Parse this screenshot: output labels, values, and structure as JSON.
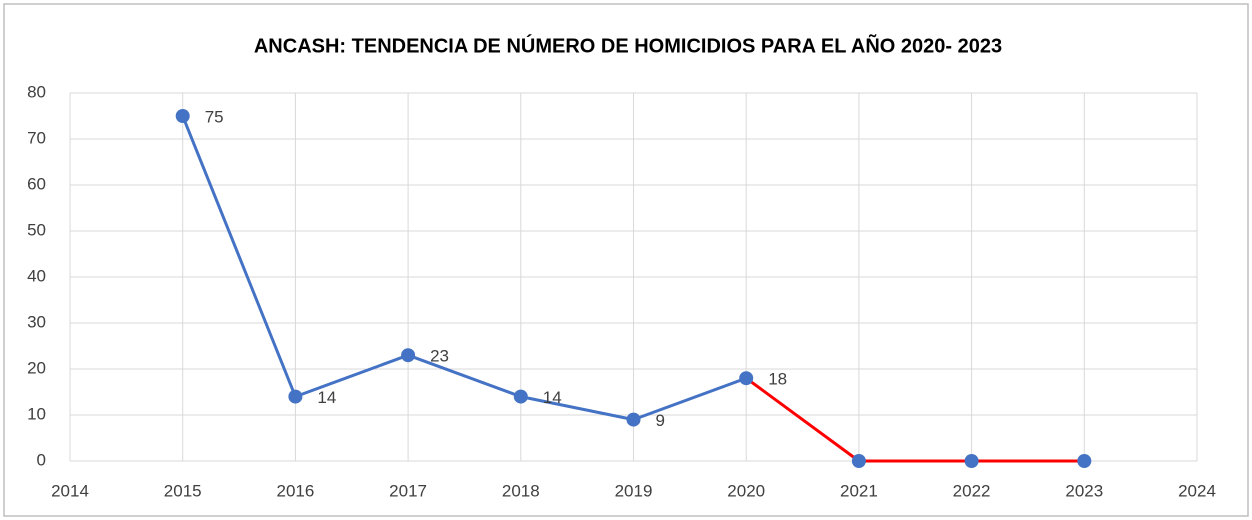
{
  "chart_data": {
    "type": "line",
    "title": "ANCASH: TENDENCIA DE NÚMERO DE HOMICIDIOS PARA EL AÑO 2020- 2023",
    "x": [
      2015,
      2016,
      2017,
      2018,
      2019,
      2020,
      2021,
      2022,
      2023
    ],
    "series": [
      {
        "color": "#4472c4",
        "values": [
          75,
          14,
          23,
          14,
          9,
          18,
          0,
          0,
          0
        ],
        "segment_colors": [
          "#4472c4",
          "#4472c4",
          "#4472c4",
          "#4472c4",
          "#4472c4",
          "#ff0000",
          "#ff0000",
          "#ff0000"
        ],
        "show_labels": [
          true,
          true,
          true,
          true,
          true,
          true,
          false,
          false,
          false
        ]
      }
    ],
    "xlim": [
      2014,
      2024
    ],
    "xticks": [
      2014,
      2015,
      2016,
      2017,
      2018,
      2019,
      2020,
      2021,
      2022,
      2023,
      2024
    ],
    "ylim": [
      0,
      80
    ],
    "yticks": [
      0,
      10,
      20,
      30,
      40,
      50,
      60,
      70,
      80
    ],
    "grid": true
  }
}
